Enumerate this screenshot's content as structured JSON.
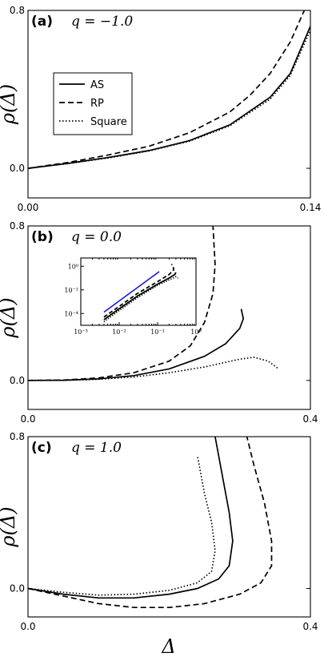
{
  "xlabel": "Δ",
  "ylabel": "ρ(Δ)",
  "legend": {
    "placement": "left",
    "entries": [
      {
        "label": "AS",
        "style": "solid"
      },
      {
        "label": "RP",
        "style": "dashed"
      },
      {
        "label": "Square",
        "style": "dotted"
      }
    ]
  },
  "chart_data": [
    {
      "type": "line",
      "panel_label": "(a)",
      "q_label": "q = −1.0",
      "xlim": [
        0,
        0.14
      ],
      "ylim": [
        -0.15,
        0.8
      ],
      "xticks": [
        {
          "v": 0,
          "label": "0.00"
        },
        {
          "v": 0.14,
          "label": "0.14"
        }
      ],
      "yticks": [
        {
          "v": 0,
          "label": "0.0"
        },
        {
          "v": 0.8,
          "label": "0.8"
        }
      ],
      "series": [
        {
          "name": "AS",
          "style": "solid",
          "points": [
            [
              0,
              0
            ],
            [
              0.02,
              0.025
            ],
            [
              0.04,
              0.055
            ],
            [
              0.06,
              0.09
            ],
            [
              0.08,
              0.14
            ],
            [
              0.1,
              0.22
            ],
            [
              0.12,
              0.36
            ],
            [
              0.13,
              0.48
            ],
            [
              0.14,
              0.72
            ]
          ]
        },
        {
          "name": "RP",
          "style": "dashed",
          "points": [
            [
              0,
              0
            ],
            [
              0.02,
              0.03
            ],
            [
              0.04,
              0.068
            ],
            [
              0.06,
              0.112
            ],
            [
              0.08,
              0.18
            ],
            [
              0.1,
              0.285
            ],
            [
              0.11,
              0.37
            ],
            [
              0.12,
              0.48
            ],
            [
              0.13,
              0.64
            ],
            [
              0.137,
              0.8
            ]
          ]
        },
        {
          "name": "Square",
          "style": "dotted",
          "points": [
            [
              0,
              0
            ],
            [
              0.02,
              0.024
            ],
            [
              0.04,
              0.053
            ],
            [
              0.06,
              0.088
            ],
            [
              0.08,
              0.137
            ],
            [
              0.1,
              0.215
            ],
            [
              0.12,
              0.35
            ],
            [
              0.13,
              0.47
            ],
            [
              0.14,
              0.7
            ]
          ]
        }
      ]
    },
    {
      "type": "line",
      "panel_label": "(b)",
      "q_label": "q = 0.0",
      "xlim": [
        0,
        0.4
      ],
      "ylim": [
        -0.15,
        0.8
      ],
      "xticks": [
        {
          "v": 0,
          "label": "0.0"
        },
        {
          "v": 0.4,
          "label": "0.4"
        }
      ],
      "yticks": [
        {
          "v": 0,
          "label": "0.0"
        },
        {
          "v": 0.8,
          "label": "0.8"
        }
      ],
      "series": [
        {
          "name": "AS",
          "style": "solid",
          "points": [
            [
              0,
              0
            ],
            [
              0.05,
              0.001
            ],
            [
              0.1,
              0.008
            ],
            [
              0.15,
              0.025
            ],
            [
              0.2,
              0.06
            ],
            [
              0.25,
              0.125
            ],
            [
              0.28,
              0.19
            ],
            [
              0.3,
              0.27
            ],
            [
              0.305,
              0.32
            ],
            [
              0.302,
              0.37
            ]
          ]
        },
        {
          "name": "RP",
          "style": "dashed",
          "points": [
            [
              0,
              0
            ],
            [
              0.05,
              0.002
            ],
            [
              0.1,
              0.013
            ],
            [
              0.15,
              0.04
            ],
            [
              0.2,
              0.1
            ],
            [
              0.23,
              0.18
            ],
            [
              0.25,
              0.3
            ],
            [
              0.262,
              0.45
            ],
            [
              0.265,
              0.6
            ],
            [
              0.262,
              0.8
            ]
          ]
        },
        {
          "name": "Square",
          "style": "dotted",
          "points": [
            [
              0,
              0
            ],
            [
              0.05,
              0.001
            ],
            [
              0.1,
              0.006
            ],
            [
              0.15,
              0.018
            ],
            [
              0.2,
              0.04
            ],
            [
              0.25,
              0.07
            ],
            [
              0.3,
              0.11
            ],
            [
              0.32,
              0.12
            ],
            [
              0.34,
              0.1
            ],
            [
              0.355,
              0.06
            ]
          ]
        }
      ],
      "inset": {
        "scale": "log",
        "xlim": [
          0.001,
          1
        ],
        "ylim": [
          1e-05,
          5
        ],
        "xticks": [
          {
            "v": 0.001,
            "label": "10⁻³"
          },
          {
            "v": 0.01,
            "label": "10⁻²"
          },
          {
            "v": 0.1,
            "label": "10⁻¹"
          },
          {
            "v": 1,
            "label": "10⁰"
          }
        ],
        "yticks": [
          {
            "v": 0.0001,
            "label": "10⁻⁴"
          },
          {
            "v": 0.01,
            "label": "10⁻²"
          },
          {
            "v": 1,
            "label": "10⁰"
          }
        ],
        "reference_color": "#1010e0",
        "series": [
          {
            "name": "reference",
            "style": "solid",
            "color": "#1010e0",
            "points": [
              [
                0.004,
                0.00013
              ],
              [
                0.11,
                0.35
              ]
            ]
          },
          {
            "name": "AS",
            "style": "solid",
            "points": [
              [
                0.004,
                3e-05
              ],
              [
                0.01,
                0.00025
              ],
              [
                0.03,
                0.003
              ],
              [
                0.1,
                0.03
              ],
              [
                0.2,
                0.1
              ],
              [
                0.28,
                0.2
              ],
              [
                0.3,
                0.3
              ]
            ]
          },
          {
            "name": "RP",
            "style": "dashed",
            "points": [
              [
                0.004,
                5e-05
              ],
              [
                0.01,
                0.0004
              ],
              [
                0.03,
                0.005
              ],
              [
                0.1,
                0.05
              ],
              [
                0.2,
                0.2
              ],
              [
                0.262,
                0.5
              ],
              [
                0.255,
                1.0
              ],
              [
                0.23,
                1.5
              ]
            ]
          },
          {
            "name": "Square",
            "style": "dotted",
            "points": [
              [
                0.004,
                2e-05
              ],
              [
                0.01,
                0.00018
              ],
              [
                0.03,
                0.0022
              ],
              [
                0.1,
                0.025
              ],
              [
                0.2,
                0.07
              ],
              [
                0.3,
                0.13
              ],
              [
                0.34,
                0.1
              ]
            ]
          }
        ]
      }
    },
    {
      "type": "line",
      "panel_label": "(c)",
      "q_label": "q = 1.0",
      "xlim": [
        0,
        0.4
      ],
      "ylim": [
        -0.15,
        0.8
      ],
      "xticks": [
        {
          "v": 0,
          "label": "0.0"
        },
        {
          "v": 0.4,
          "label": "0.4"
        }
      ],
      "yticks": [
        {
          "v": 0,
          "label": "0.0"
        },
        {
          "v": 0.8,
          "label": "0.8"
        }
      ],
      "series": [
        {
          "name": "AS",
          "style": "solid",
          "points": [
            [
              0,
              0
            ],
            [
              0.05,
              -0.03
            ],
            [
              0.1,
              -0.05
            ],
            [
              0.15,
              -0.05
            ],
            [
              0.2,
              -0.03
            ],
            [
              0.24,
              0.0
            ],
            [
              0.27,
              0.05
            ],
            [
              0.285,
              0.12
            ],
            [
              0.29,
              0.25
            ],
            [
              0.285,
              0.4
            ],
            [
              0.275,
              0.6
            ],
            [
              0.265,
              0.8
            ]
          ]
        },
        {
          "name": "RP",
          "style": "dashed",
          "points": [
            [
              0,
              0
            ],
            [
              0.05,
              -0.04
            ],
            [
              0.1,
              -0.08
            ],
            [
              0.15,
              -0.1
            ],
            [
              0.2,
              -0.1
            ],
            [
              0.25,
              -0.08
            ],
            [
              0.3,
              -0.03
            ],
            [
              0.33,
              0.03
            ],
            [
              0.345,
              0.12
            ],
            [
              0.345,
              0.25
            ],
            [
              0.335,
              0.45
            ],
            [
              0.32,
              0.65
            ],
            [
              0.31,
              0.8
            ]
          ]
        },
        {
          "name": "Square",
          "style": "dotted",
          "points": [
            [
              0,
              0
            ],
            [
              0.05,
              -0.02
            ],
            [
              0.1,
              -0.035
            ],
            [
              0.15,
              -0.03
            ],
            [
              0.2,
              -0.01
            ],
            [
              0.24,
              0.03
            ],
            [
              0.26,
              0.09
            ],
            [
              0.265,
              0.2
            ],
            [
              0.26,
              0.35
            ],
            [
              0.25,
              0.5
            ],
            [
              0.24,
              0.7
            ]
          ]
        }
      ]
    }
  ]
}
